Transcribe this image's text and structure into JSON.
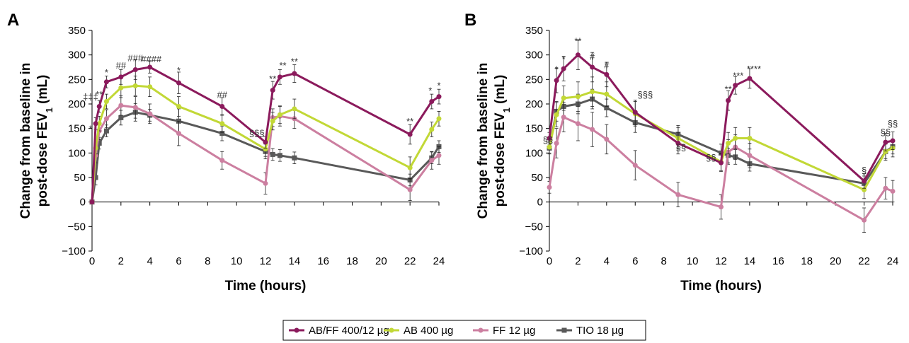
{
  "chart_data": [
    {
      "panel": "A",
      "type": "line",
      "xlabel": "Time (hours)",
      "ylabel_line1": "Change from baseline in",
      "ylabel_line2": "post-dose FEV",
      "ylabel_sub": "1",
      "ylabel_unit": " (mL)",
      "xlim": [
        0,
        24
      ],
      "ylim": [
        -100,
        350
      ],
      "xticks": [
        "0",
        "2",
        "4",
        "6",
        "8",
        "10",
        "12",
        "14",
        "16",
        "18",
        "20",
        "22",
        "24"
      ],
      "yticks": [
        "−100",
        "−50",
        "0",
        "50",
        "100",
        "150",
        "200",
        "250",
        "300",
        "350"
      ],
      "series": [
        {
          "name": "AB/FF 400/12 µg",
          "color": "#8b1a5c",
          "x": [
            0,
            0.25,
            0.5,
            1,
            2,
            3,
            4,
            6,
            9,
            12,
            12.5,
            13,
            14,
            22,
            23.5,
            24
          ],
          "y": [
            0,
            160,
            195,
            245,
            255,
            270,
            275,
            243,
            195,
            122,
            228,
            255,
            262,
            138,
            205,
            215
          ],
          "err": [
            0,
            12,
            12,
            12,
            15,
            20,
            12,
            22,
            18,
            12,
            18,
            15,
            18,
            20,
            15,
            15
          ]
        },
        {
          "name": "AB 400 µg",
          "color": "#c2d836",
          "x": [
            0,
            0.25,
            0.5,
            1,
            2,
            3,
            4,
            6,
            9,
            12,
            12.5,
            13,
            14,
            22,
            23.5,
            24
          ],
          "y": [
            0,
            110,
            160,
            205,
            233,
            237,
            235,
            195,
            160,
            108,
            165,
            178,
            190,
            70,
            148,
            170
          ],
          "err": [
            0,
            12,
            15,
            15,
            20,
            20,
            20,
            20,
            18,
            15,
            18,
            18,
            20,
            22,
            15,
            15
          ]
        },
        {
          "name": "FF 12 µg",
          "color": "#cc7fa0",
          "x": [
            0,
            0.25,
            0.5,
            1,
            2,
            3,
            4,
            6,
            9,
            12,
            12.5,
            13,
            14,
            22,
            23.5,
            24
          ],
          "y": [
            0,
            95,
            145,
            170,
            197,
            193,
            180,
            140,
            85,
            38,
            172,
            175,
            170,
            25,
            85,
            95
          ],
          "err": [
            0,
            15,
            18,
            18,
            20,
            22,
            20,
            25,
            18,
            22,
            18,
            20,
            20,
            22,
            18,
            18
          ]
        },
        {
          "name": "TIO 18 µg",
          "color": "#595959",
          "x": [
            0,
            0.25,
            0.5,
            1,
            2,
            3,
            4,
            6,
            9,
            12,
            12.5,
            13,
            14,
            22,
            23.5,
            24
          ],
          "y": [
            0,
            50,
            120,
            145,
            172,
            183,
            177,
            165,
            140,
            103,
            97,
            95,
            90,
            45,
            90,
            113
          ],
          "err": [
            0,
            15,
            12,
            12,
            15,
            18,
            12,
            25,
            15,
            15,
            12,
            12,
            12,
            12,
            12,
            12
          ]
        }
      ],
      "annotations": [
        {
          "x": -0.1,
          "y": 143,
          "text": "*"
        },
        {
          "x": -0.1,
          "y": 208,
          "text": "‡‡‡"
        },
        {
          "x": 0.5,
          "y": 213,
          "text": "**"
        },
        {
          "x": 1,
          "y": 258,
          "text": "*"
        },
        {
          "x": 2,
          "y": 272,
          "text": "##"
        },
        {
          "x": 3,
          "y": 287,
          "text": "###"
        },
        {
          "x": 4.1,
          "y": 285,
          "text": "####"
        },
        {
          "x": 6,
          "y": 262,
          "text": "*"
        },
        {
          "x": 9,
          "y": 212,
          "text": "##"
        },
        {
          "x": 11.4,
          "y": 134,
          "text": "§§§"
        },
        {
          "x": 12.5,
          "y": 245,
          "text": "**"
        },
        {
          "x": 13.2,
          "y": 272,
          "text": "**"
        },
        {
          "x": 14,
          "y": 280,
          "text": "**"
        },
        {
          "x": 22,
          "y": 158,
          "text": "**"
        },
        {
          "x": 23.4,
          "y": 221,
          "text": "*"
        },
        {
          "x": 24,
          "y": 231,
          "text": "*"
        }
      ]
    },
    {
      "panel": "B",
      "type": "line",
      "xlabel": "Time (hours)",
      "ylabel_line1": "Change from baseline in",
      "ylabel_line2": "post-dose FEV",
      "ylabel_sub": "1",
      "ylabel_unit": " (mL)",
      "xlim": [
        0,
        24
      ],
      "ylim": [
        -100,
        350
      ],
      "xticks": [
        "0",
        "2",
        "4",
        "6",
        "8",
        "10",
        "12",
        "14",
        "16",
        "18",
        "20",
        "22",
        "24"
      ],
      "yticks": [
        "−100",
        "−50",
        "0",
        "50",
        "100",
        "150",
        "200",
        "250",
        "300",
        "350"
      ],
      "series": [
        {
          "name": "AB/FF 400/12 µg",
          "color": "#8b1a5c",
          "x": [
            0,
            0.5,
            1,
            2,
            3,
            4,
            6,
            9,
            12,
            12.5,
            13,
            14,
            22,
            23.5,
            24
          ],
          "y": [
            130,
            248,
            272,
            300,
            275,
            260,
            183,
            120,
            80,
            207,
            238,
            252,
            43,
            122,
            125
          ],
          "err": [
            12,
            25,
            25,
            30,
            30,
            25,
            25,
            22,
            18,
            20,
            18,
            20,
            15,
            18,
            18
          ]
        },
        {
          "name": "AB 400 µg",
          "color": "#c2d836",
          "x": [
            0,
            0.5,
            1,
            2,
            3,
            4,
            6,
            9,
            12,
            12.5,
            13,
            14,
            22,
            23.5,
            24
          ],
          "y": [
            112,
            178,
            212,
            215,
            225,
            220,
            180,
            130,
            82,
            120,
            130,
            130,
            25,
            103,
            110
          ],
          "err": [
            12,
            25,
            25,
            30,
            30,
            25,
            25,
            22,
            18,
            22,
            22,
            22,
            18,
            18,
            18
          ]
        },
        {
          "name": "FF 12 µg",
          "color": "#cc7fa0",
          "x": [
            0,
            0.5,
            1,
            2,
            3,
            4,
            6,
            9,
            12,
            12.5,
            13,
            14,
            22,
            23.5,
            24
          ],
          "y": [
            30,
            120,
            173,
            160,
            148,
            128,
            75,
            15,
            -10,
            102,
            112,
            95,
            -37,
            28,
            22
          ],
          "err": [
            12,
            30,
            30,
            35,
            35,
            30,
            30,
            25,
            25,
            25,
            25,
            25,
            25,
            22,
            22
          ]
        },
        {
          "name": "TIO 18 µg",
          "color": "#595959",
          "x": [
            0,
            0.5,
            1,
            2,
            3,
            4,
            6,
            9,
            12,
            12.5,
            13,
            14,
            22,
            23.5,
            24
          ],
          "y": [
            110,
            185,
            195,
            200,
            210,
            192,
            162,
            138,
            100,
            95,
            92,
            78,
            38,
            103,
            113
          ],
          "err": [
            12,
            20,
            20,
            20,
            20,
            18,
            20,
            18,
            18,
            15,
            15,
            15,
            15,
            15,
            15
          ]
        }
      ],
      "annotations": [
        {
          "x": -0.1,
          "y": 120,
          "text": "§§"
        },
        {
          "x": 0.5,
          "y": 264,
          "text": "*"
        },
        {
          "x": 1,
          "y": 285,
          "text": "*"
        },
        {
          "x": 2,
          "y": 322,
          "text": "**"
        },
        {
          "x": 3,
          "y": 290,
          "text": "#"
        },
        {
          "x": 4,
          "y": 273,
          "text": "#"
        },
        {
          "x": 6.7,
          "y": 212,
          "text": "§§§"
        },
        {
          "x": 9.2,
          "y": 105,
          "text": "§§"
        },
        {
          "x": 11.3,
          "y": 84,
          "text": "§§"
        },
        {
          "x": 12.5,
          "y": 224,
          "text": "**"
        },
        {
          "x": 13.2,
          "y": 251,
          "text": "***"
        },
        {
          "x": 14.3,
          "y": 265,
          "text": "****"
        },
        {
          "x": 22,
          "y": 58,
          "text": "§"
        },
        {
          "x": 23.5,
          "y": 136,
          "text": "§§"
        },
        {
          "x": 24,
          "y": 153,
          "text": "§§"
        }
      ]
    }
  ],
  "legend": {
    "placement": "bottom-center",
    "items": [
      {
        "label": "AB/FF 400/12 µg",
        "color": "#8b1a5c"
      },
      {
        "label": "AB 400 µg",
        "color": "#c2d836"
      },
      {
        "label": "FF 12 µg",
        "color": "#cc7fa0"
      },
      {
        "label": "TIO 18 µg",
        "color": "#595959"
      }
    ]
  }
}
